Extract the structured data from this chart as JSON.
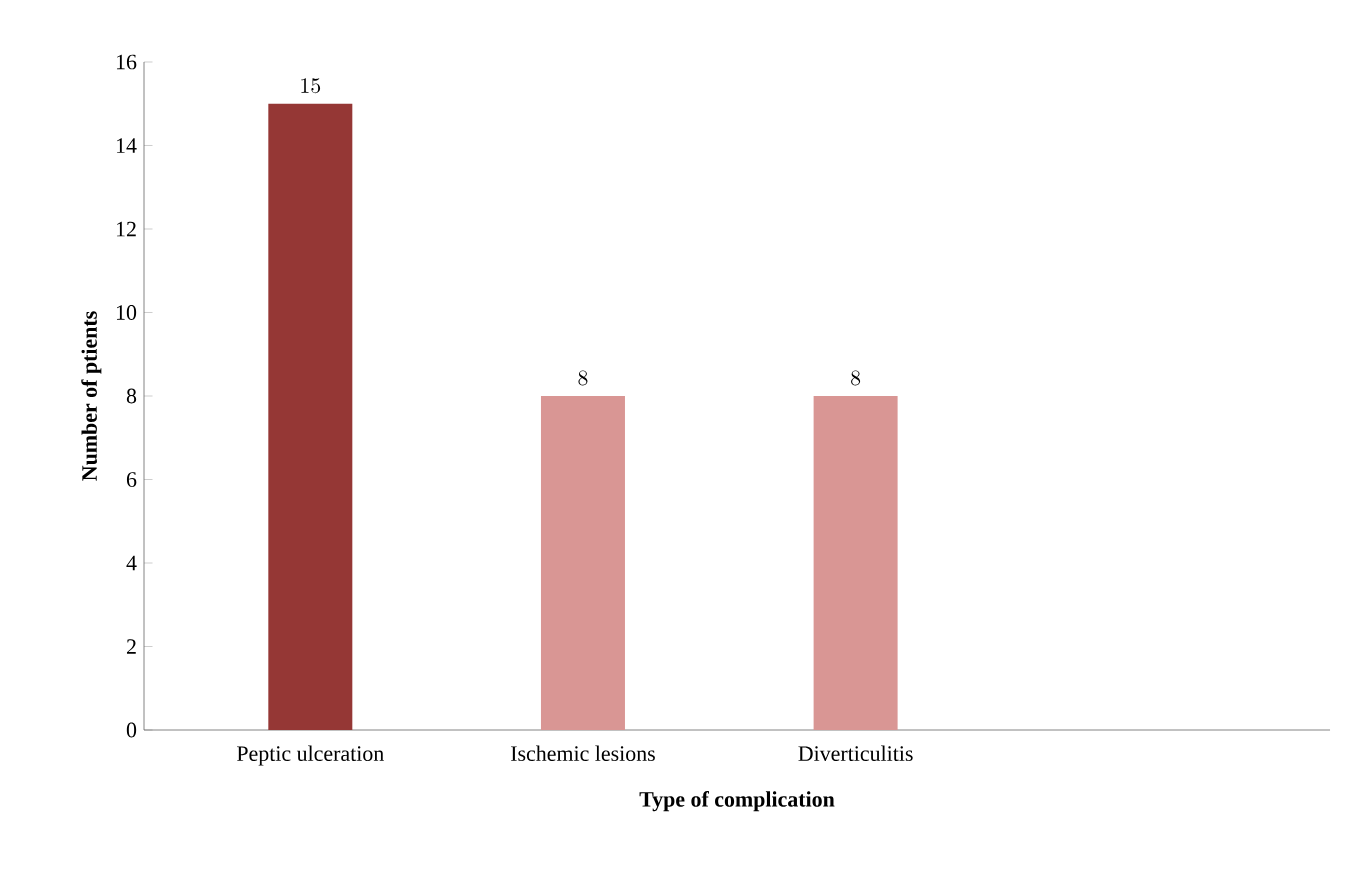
{
  "chart_data": {
    "type": "bar",
    "categories": [
      "Peptic ulceration",
      "Ischemic lesions",
      "Diverticulitis",
      null
    ],
    "values": [
      15,
      8,
      8,
      null
    ],
    "colors": [
      "#953735",
      "#d99694",
      "#d99694",
      "#d99694"
    ],
    "xlabel": "Type of complication",
    "ylabel": "Number of ptients",
    "ylim": [
      0,
      16
    ],
    "yticks": [
      0,
      2,
      4,
      6,
      8,
      10,
      12,
      14,
      16
    ],
    "data_labels": true
  }
}
